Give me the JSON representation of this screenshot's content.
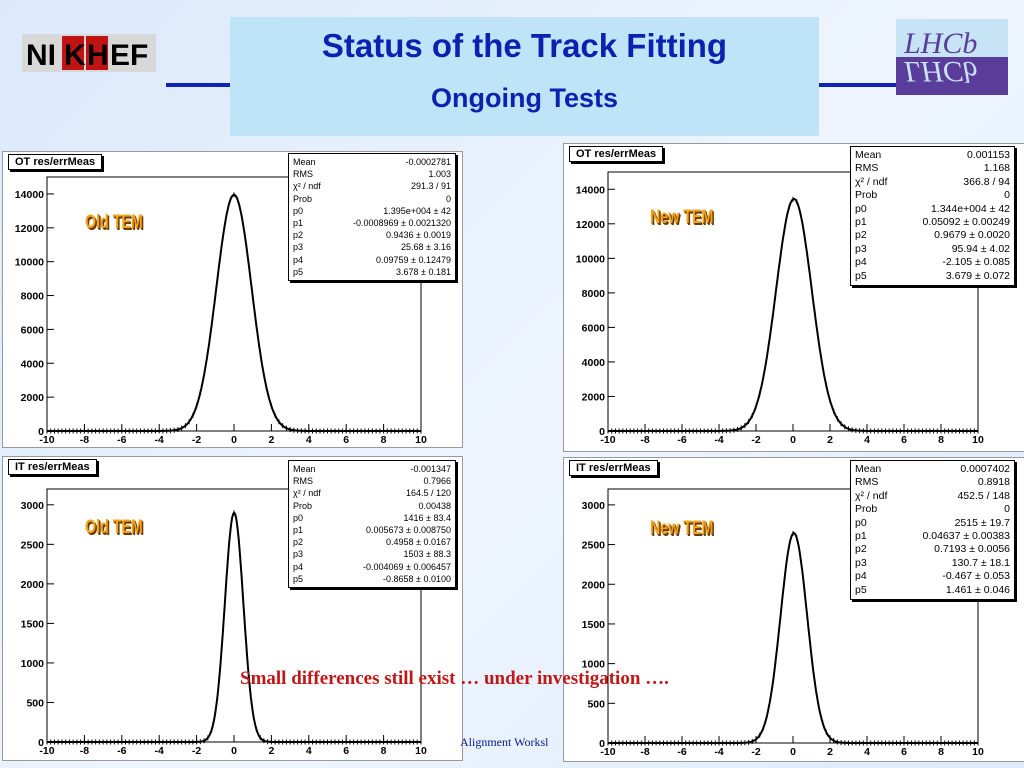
{
  "slide": {
    "title": "Status of the Track Fitting",
    "subtitle": "Ongoing Tests",
    "note": "Small differences still exist … under investigation ….",
    "footer": "Alignment Worksl",
    "logos": {
      "left": "NIKHEF",
      "right": "LHCb"
    },
    "colors": {
      "title": "#0b22b0",
      "title_box": "#bfe3f7",
      "rule": "#0f23b4",
      "note": "#c01818",
      "tag": "#f4a41a"
    }
  },
  "panels": [
    {
      "title": "OT res/errMeas",
      "tag": "Old TEM",
      "stats": [
        {
          "k": "Mean",
          "v": "-0.0002781"
        },
        {
          "k": "RMS",
          "v": "1.003"
        },
        {
          "k": "χ² / ndf",
          "v": "291.3 / 91"
        },
        {
          "k": "Prob",
          "v": "0"
        },
        {
          "k": "p0",
          "v": "1.395e+004 ± 42"
        },
        {
          "k": "p1",
          "v": "-0.0008969 ± 0.0021320"
        },
        {
          "k": "p2",
          "v": "0.9436 ± 0.0019"
        },
        {
          "k": "p3",
          "v": "25.68 ± 3.16"
        },
        {
          "k": "p4",
          "v": "0.09759 ± 0.12479"
        },
        {
          "k": "p5",
          "v": "3.678 ± 0.181"
        }
      ]
    },
    {
      "title": "OT res/errMeas",
      "tag": "New TEM",
      "stats": [
        {
          "k": "Mean",
          "v": "0.001153"
        },
        {
          "k": "RMS",
          "v": "1.168"
        },
        {
          "k": "χ² / ndf",
          "v": "366.8 / 94"
        },
        {
          "k": "Prob",
          "v": "0"
        },
        {
          "k": "p0",
          "v": "1.344e+004 ± 42"
        },
        {
          "k": "p1",
          "v": "0.05092 ± 0.00249"
        },
        {
          "k": "p2",
          "v": "0.9679 ± 0.0020"
        },
        {
          "k": "p3",
          "v": "95.94 ± 4.02"
        },
        {
          "k": "p4",
          "v": "-2.105 ± 0.085"
        },
        {
          "k": "p5",
          "v": "3.679 ± 0.072"
        }
      ]
    },
    {
      "title": "IT res/errMeas",
      "tag": "Old TEM",
      "stats": [
        {
          "k": "Mean",
          "v": "-0.001347"
        },
        {
          "k": "RMS",
          "v": "0.7966"
        },
        {
          "k": "χ² / ndf",
          "v": "164.5 / 120"
        },
        {
          "k": "Prob",
          "v": "0.00438"
        },
        {
          "k": "p0",
          "v": "1416 ± 83.4"
        },
        {
          "k": "p1",
          "v": "0.005673 ± 0.008750"
        },
        {
          "k": "p2",
          "v": "0.4958 ± 0.0167"
        },
        {
          "k": "p3",
          "v": "1503 ± 88.3"
        },
        {
          "k": "p4",
          "v": "-0.004069 ± 0.006457"
        },
        {
          "k": "p5",
          "v": "-0.8658 ± 0.0100"
        }
      ]
    },
    {
      "title": "IT res/errMeas",
      "tag": "New TEM",
      "stats": [
        {
          "k": "Mean",
          "v": "0.0007402"
        },
        {
          "k": "RMS",
          "v": "0.8918"
        },
        {
          "k": "χ² / ndf",
          "v": "452.5 / 148"
        },
        {
          "k": "Prob",
          "v": "0"
        },
        {
          "k": "p0",
          "v": "2515 ± 19.7"
        },
        {
          "k": "p1",
          "v": "0.04637 ± 0.00383"
        },
        {
          "k": "p2",
          "v": "0.7193 ± 0.0056"
        },
        {
          "k": "p3",
          "v": "130.7 ± 18.1"
        },
        {
          "k": "p4",
          "v": "-0.467 ± 0.053"
        },
        {
          "k": "p5",
          "v": "1.461 ± 0.046"
        }
      ]
    }
  ],
  "chart_data": [
    {
      "type": "line",
      "title": "OT res/errMeas",
      "xlim": [
        -10,
        10
      ],
      "ylim": [
        0,
        15000
      ],
      "xticks": [
        -10,
        -8,
        -6,
        -4,
        -2,
        0,
        2,
        4,
        6,
        8,
        10
      ],
      "yticks": [
        0,
        2000,
        4000,
        6000,
        8000,
        10000,
        12000,
        14000
      ],
      "series": [
        {
          "peak": 13950,
          "mean": -0.0009,
          "sigma": 0.9436
        }
      ]
    },
    {
      "type": "line",
      "title": "OT res/errMeas",
      "xlim": [
        -10,
        10
      ],
      "ylim": [
        0,
        15000
      ],
      "xticks": [
        -10,
        -8,
        -6,
        -4,
        -2,
        0,
        2,
        4,
        6,
        8,
        10
      ],
      "yticks": [
        0,
        2000,
        4000,
        6000,
        8000,
        10000,
        12000,
        14000
      ],
      "series": [
        {
          "peak": 13440,
          "mean": 0.051,
          "sigma": 0.9679
        }
      ]
    },
    {
      "type": "line",
      "title": "IT res/errMeas",
      "xlim": [
        -10,
        10
      ],
      "ylim": [
        0,
        3200
      ],
      "xticks": [
        -10,
        -8,
        -6,
        -4,
        -2,
        0,
        2,
        4,
        6,
        8,
        10
      ],
      "yticks": [
        0,
        500,
        1000,
        1500,
        2000,
        2500,
        3000
      ],
      "series": [
        {
          "peak": 2900,
          "mean": 0.0057,
          "sigma": 0.4958
        }
      ]
    },
    {
      "type": "line",
      "title": "IT res/errMeas",
      "xlim": [
        -10,
        10
      ],
      "ylim": [
        0,
        3200
      ],
      "xticks": [
        -10,
        -8,
        -6,
        -4,
        -2,
        0,
        2,
        4,
        6,
        8,
        10
      ],
      "yticks": [
        0,
        500,
        1000,
        1500,
        2000,
        2500,
        3000
      ],
      "series": [
        {
          "peak": 2645,
          "mean": 0.046,
          "sigma": 0.7193
        }
      ]
    }
  ]
}
